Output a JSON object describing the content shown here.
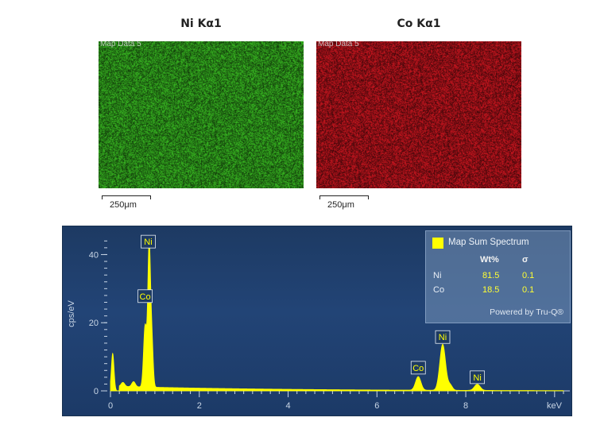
{
  "maps": [
    {
      "title": "Ni Kα1",
      "label": "Map Data 5",
      "scale": "250μm",
      "color": "#2f9a1c"
    },
    {
      "title": "Co Kα1",
      "label": "Map Data 5",
      "scale": "250μm",
      "color": "#a8121a"
    }
  ],
  "spectrum": {
    "legend": {
      "title": "Map Sum Spectrum",
      "col_wt": "Wt%",
      "col_sigma": "σ",
      "rows": [
        {
          "element": "Ni",
          "wt": "81.5",
          "sigma": "0.1"
        },
        {
          "element": "Co",
          "wt": "18.5",
          "sigma": "0.1"
        }
      ],
      "powered": "Powered by Tru-Q®"
    },
    "peak_labels": [
      {
        "label": "Ni",
        "kev": 0.85,
        "cps": 41.0
      },
      {
        "label": "Co",
        "kev": 0.78,
        "cps": 25.0
      },
      {
        "label": "Ni",
        "kev": 7.48,
        "cps": 13.0
      },
      {
        "label": "Co",
        "kev": 6.93,
        "cps": 4.0
      },
      {
        "label": "Ni",
        "kev": 8.26,
        "cps": 1.2
      }
    ],
    "background_color": "#1f3f6e",
    "line_color": "#ffff00"
  },
  "chart_data": {
    "type": "area",
    "title": "",
    "xlabel": "keV",
    "ylabel": "cps/eV",
    "xlim": [
      0,
      10.2
    ],
    "ylim": [
      0,
      45
    ],
    "x_ticks": [
      0,
      2,
      4,
      6,
      8
    ],
    "y_ticks": [
      0,
      20,
      40
    ],
    "peaks": [
      {
        "kev": 0.05,
        "cps": 11,
        "width": 0.03
      },
      {
        "kev": 0.28,
        "cps": 1.2,
        "width": 0.04
      },
      {
        "kev": 0.52,
        "cps": 1.5,
        "width": 0.04
      },
      {
        "kev": 0.78,
        "cps": 18,
        "width": 0.035
      },
      {
        "kev": 0.87,
        "cps": 41,
        "width": 0.03
      },
      {
        "kev": 0.93,
        "cps": 14,
        "width": 0.03
      },
      {
        "kev": 6.93,
        "cps": 4,
        "width": 0.06
      },
      {
        "kev": 7.48,
        "cps": 13.5,
        "width": 0.065
      },
      {
        "kev": 7.65,
        "cps": 1.5,
        "width": 0.05
      },
      {
        "kev": 8.26,
        "cps": 1.8,
        "width": 0.065
      }
    ],
    "baseline_cps": 1.0
  }
}
